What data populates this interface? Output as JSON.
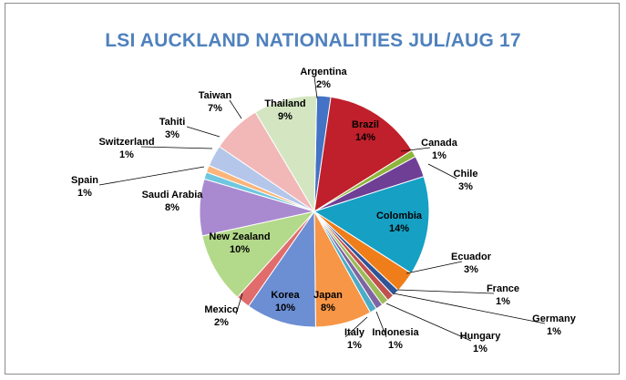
{
  "chart_data": {
    "type": "pie",
    "title": "LSI AUCKLAND NATIONALITIES JUL/AUG 17",
    "slices": [
      {
        "label": "Argentina",
        "value": 2,
        "display": "2%",
        "color": "#4472c4"
      },
      {
        "label": "Brazil",
        "value": 14,
        "display": "14%",
        "color": "#c0202b"
      },
      {
        "label": "Canada",
        "value": 1,
        "display": "1%",
        "color": "#8db63c"
      },
      {
        "label": "Chile",
        "value": 3,
        "display": "3%",
        "color": "#6f3f96"
      },
      {
        "label": "Colombia",
        "value": 14,
        "display": "14%",
        "color": "#15a0c4"
      },
      {
        "label": "Ecuador",
        "value": 3,
        "display": "3%",
        "color": "#ef7d1a"
      },
      {
        "label": "France",
        "value": 1,
        "display": "1%",
        "color": "#2f5597"
      },
      {
        "label": "Germany",
        "value": 1,
        "display": "1%",
        "color": "#c0504d"
      },
      {
        "label": "Hungary",
        "value": 1,
        "display": "1%",
        "color": "#9bbb59"
      },
      {
        "label": "Indonesia",
        "value": 1,
        "display": "1%",
        "color": "#8064a2"
      },
      {
        "label": "Italy",
        "value": 1,
        "display": "1%",
        "color": "#4bacc6"
      },
      {
        "label": "Japan",
        "value": 8,
        "display": "8%",
        "color": "#f79646"
      },
      {
        "label": "Korea",
        "value": 10,
        "display": "10%",
        "color": "#6c8ed3"
      },
      {
        "label": "Mexico",
        "value": 2,
        "display": "2%",
        "color": "#e06c6c"
      },
      {
        "label": "New Zealand",
        "value": 10,
        "display": "10%",
        "color": "#b3d98a"
      },
      {
        "label": "Saudi Arabia",
        "value": 8,
        "display": "8%",
        "color": "#a98ad0"
      },
      {
        "label": "Spain",
        "value": 1,
        "display": "1%",
        "color": "#6ec7df"
      },
      {
        "label": "Switzerland",
        "value": 1,
        "display": "1%",
        "color": "#fbb47a"
      },
      {
        "label": "Tahiti",
        "value": 3,
        "display": "3%",
        "color": "#b4c7ea"
      },
      {
        "label": "Taiwan",
        "value": 7,
        "display": "7%",
        "color": "#f2b7b7"
      },
      {
        "label": "Thailand",
        "value": 9,
        "display": "9%",
        "color": "#d3e6c1"
      }
    ]
  }
}
